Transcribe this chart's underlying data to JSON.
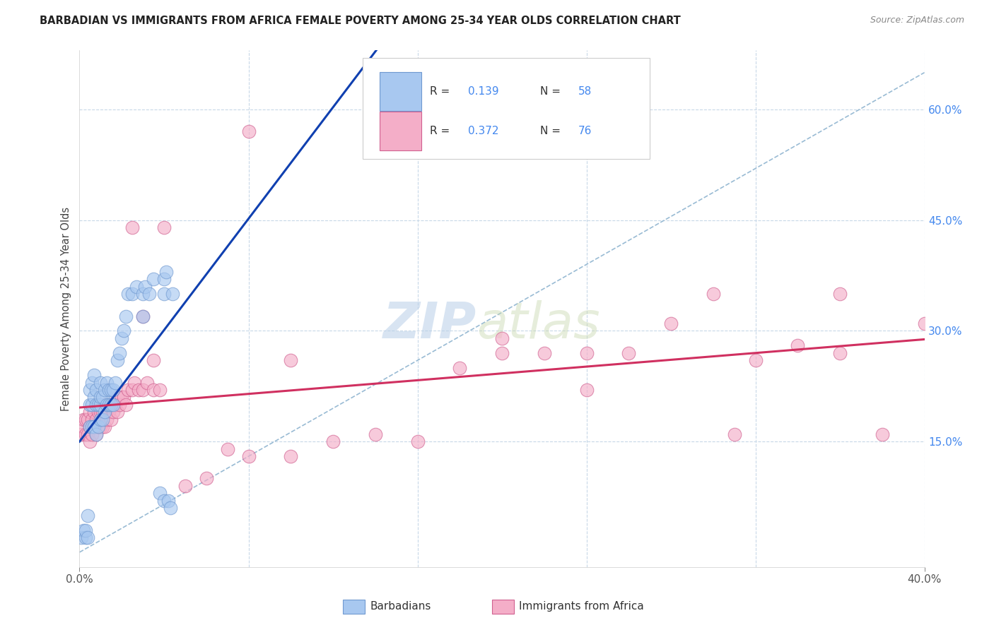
{
  "title": "BARBADIAN VS IMMIGRANTS FROM AFRICA FEMALE POVERTY AMONG 25-34 YEAR OLDS CORRELATION CHART",
  "source": "Source: ZipAtlas.com",
  "ylabel": "Female Poverty Among 25-34 Year Olds",
  "xlim": [
    0.0,
    0.4
  ],
  "ylim": [
    -0.02,
    0.68
  ],
  "right_yticks": [
    0.15,
    0.3,
    0.45,
    0.6
  ],
  "right_yticklabels": [
    "15.0%",
    "30.0%",
    "45.0%",
    "60.0%"
  ],
  "barbadian_color": "#a8c8f0",
  "africa_color": "#f4aec8",
  "barbadian_edge": "#7099d0",
  "africa_edge": "#d06090",
  "trend_blue": "#1040b0",
  "trend_pink": "#d03060",
  "dashed_line_color": "#99bbd4",
  "watermark_zip": "ZIP",
  "watermark_atlas": "atlas",
  "background_color": "#ffffff",
  "grid_color": "#c8d8e8",
  "legend_text_color": "#333333",
  "legend_R_color": "#4488ee",
  "legend_N_color": "#4488ee",
  "barbadian_x": [
    0.001,
    0.002,
    0.003,
    0.003,
    0.004,
    0.004,
    0.005,
    0.005,
    0.005,
    0.006,
    0.006,
    0.006,
    0.007,
    0.007,
    0.007,
    0.008,
    0.008,
    0.008,
    0.009,
    0.009,
    0.01,
    0.01,
    0.01,
    0.01,
    0.011,
    0.011,
    0.012,
    0.012,
    0.013,
    0.013,
    0.014,
    0.014,
    0.015,
    0.015,
    0.016,
    0.016,
    0.017,
    0.018,
    0.019,
    0.02,
    0.021,
    0.022,
    0.023,
    0.025,
    0.027,
    0.03,
    0.03,
    0.031,
    0.033,
    0.035,
    0.038,
    0.04,
    0.04,
    0.04,
    0.041,
    0.042,
    0.043,
    0.044
  ],
  "barbadian_y": [
    0.02,
    0.03,
    0.02,
    0.03,
    0.05,
    0.02,
    0.17,
    0.2,
    0.22,
    0.17,
    0.2,
    0.23,
    0.17,
    0.21,
    0.24,
    0.16,
    0.2,
    0.22,
    0.17,
    0.2,
    0.18,
    0.2,
    0.21,
    0.23,
    0.18,
    0.21,
    0.19,
    0.22,
    0.2,
    0.23,
    0.2,
    0.22,
    0.2,
    0.22,
    0.2,
    0.22,
    0.23,
    0.26,
    0.27,
    0.29,
    0.3,
    0.32,
    0.35,
    0.35,
    0.36,
    0.32,
    0.35,
    0.36,
    0.35,
    0.37,
    0.08,
    0.07,
    0.35,
    0.37,
    0.38,
    0.07,
    0.06,
    0.35
  ],
  "africa_x": [
    0.001,
    0.002,
    0.002,
    0.003,
    0.003,
    0.004,
    0.004,
    0.005,
    0.005,
    0.005,
    0.006,
    0.006,
    0.007,
    0.007,
    0.008,
    0.008,
    0.008,
    0.009,
    0.009,
    0.01,
    0.01,
    0.011,
    0.011,
    0.012,
    0.012,
    0.013,
    0.013,
    0.014,
    0.015,
    0.015,
    0.016,
    0.017,
    0.018,
    0.018,
    0.019,
    0.02,
    0.021,
    0.022,
    0.023,
    0.025,
    0.026,
    0.028,
    0.03,
    0.032,
    0.035,
    0.038,
    0.04,
    0.05,
    0.06,
    0.07,
    0.08,
    0.1,
    0.12,
    0.14,
    0.16,
    0.18,
    0.2,
    0.24,
    0.28,
    0.3,
    0.32,
    0.34,
    0.36,
    0.38,
    0.4,
    0.025,
    0.03,
    0.035,
    0.08,
    0.1,
    0.2,
    0.22,
    0.24,
    0.26,
    0.31,
    0.36
  ],
  "africa_y": [
    0.16,
    0.17,
    0.18,
    0.16,
    0.18,
    0.16,
    0.18,
    0.15,
    0.17,
    0.19,
    0.16,
    0.18,
    0.17,
    0.19,
    0.16,
    0.18,
    0.2,
    0.17,
    0.19,
    0.17,
    0.19,
    0.17,
    0.19,
    0.17,
    0.2,
    0.18,
    0.2,
    0.19,
    0.18,
    0.2,
    0.19,
    0.2,
    0.19,
    0.21,
    0.2,
    0.21,
    0.21,
    0.2,
    0.22,
    0.22,
    0.23,
    0.22,
    0.22,
    0.23,
    0.22,
    0.22,
    0.44,
    0.09,
    0.1,
    0.14,
    0.13,
    0.13,
    0.15,
    0.16,
    0.15,
    0.25,
    0.27,
    0.27,
    0.31,
    0.35,
    0.26,
    0.28,
    0.27,
    0.16,
    0.31,
    0.44,
    0.32,
    0.26,
    0.57,
    0.26,
    0.29,
    0.27,
    0.22,
    0.27,
    0.16,
    0.35
  ]
}
